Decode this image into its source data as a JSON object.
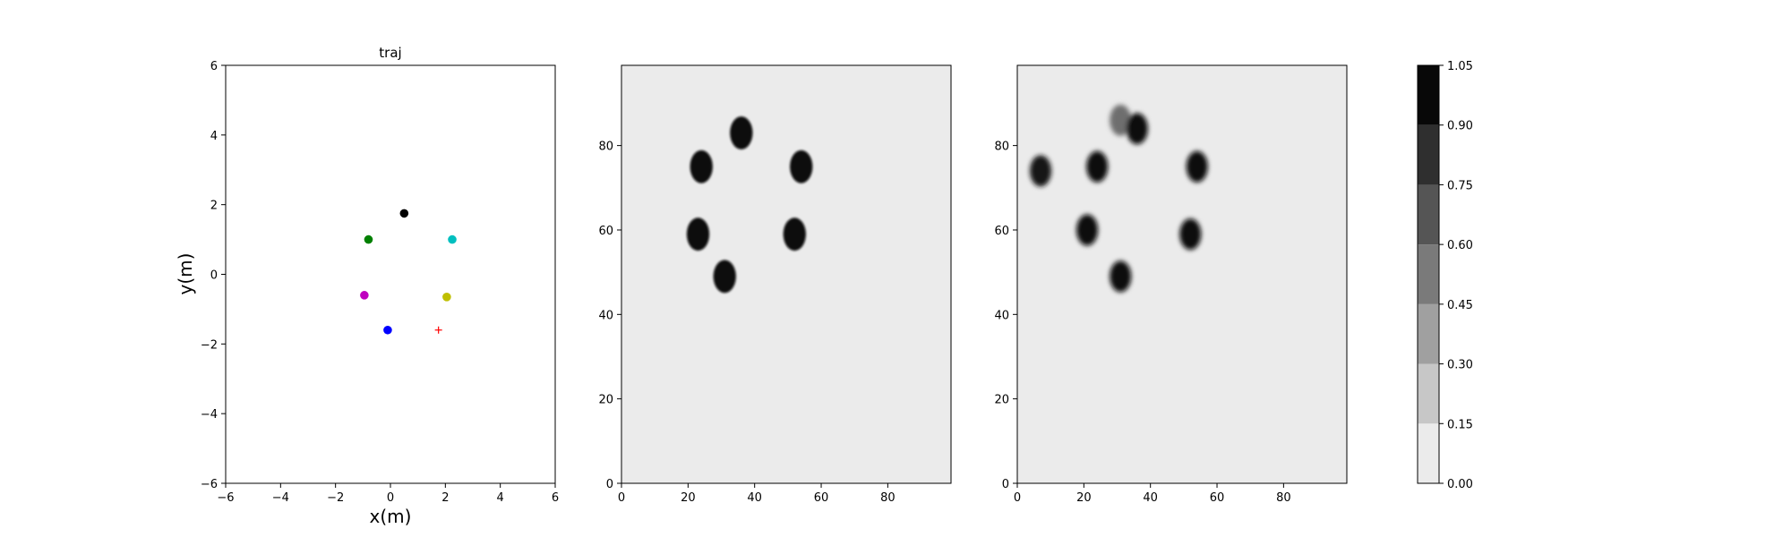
{
  "chart_data": [
    {
      "type": "scatter",
      "title": "traj",
      "xlabel": "x(m)",
      "ylabel": "y(m)",
      "xlim": [
        -6,
        6
      ],
      "ylim": [
        -6,
        6
      ],
      "xticks": [
        "−6",
        "−4",
        "−2",
        "0",
        "2",
        "4",
        "6"
      ],
      "yticks": [
        "−6",
        "−4",
        "−2",
        "0",
        "2",
        "4",
        "6"
      ],
      "grid": false,
      "points": [
        {
          "x": 0.5,
          "y": 1.75,
          "color": "#000000",
          "marker": "circle"
        },
        {
          "x": -0.8,
          "y": 1.0,
          "color": "#008000",
          "marker": "circle"
        },
        {
          "x": 2.25,
          "y": 1.0,
          "color": "#00bfbf",
          "marker": "circle"
        },
        {
          "x": -0.95,
          "y": -0.6,
          "color": "#bf00bf",
          "marker": "circle"
        },
        {
          "x": 2.05,
          "y": -0.65,
          "color": "#bfbf00",
          "marker": "circle"
        },
        {
          "x": -0.1,
          "y": -1.6,
          "color": "#0000ff",
          "marker": "circle"
        },
        {
          "x": 1.75,
          "y": -1.6,
          "color": "#ff0000",
          "marker": "plus"
        }
      ]
    },
    {
      "type": "heatmap",
      "xlim": [
        0,
        99
      ],
      "ylim": [
        0,
        99
      ],
      "xticks": [
        "0",
        "20",
        "40",
        "60",
        "80"
      ],
      "yticks": [
        "0",
        "20",
        "40",
        "60",
        "80"
      ],
      "background_value": 0.05,
      "blobs": [
        {
          "x": 23,
          "y": 59,
          "value": 1.0
        },
        {
          "x": 24,
          "y": 75,
          "value": 1.0
        },
        {
          "x": 36,
          "y": 83,
          "value": 1.0
        },
        {
          "x": 54,
          "y": 75,
          "value": 1.0
        },
        {
          "x": 52,
          "y": 59,
          "value": 1.0
        },
        {
          "x": 31,
          "y": 49,
          "value": 1.0
        }
      ]
    },
    {
      "type": "heatmap",
      "xlim": [
        0,
        99
      ],
      "ylim": [
        0,
        99
      ],
      "xticks": [
        "0",
        "20",
        "40",
        "60",
        "80"
      ],
      "yticks": [
        "0",
        "20",
        "40",
        "60",
        "80"
      ],
      "background_value": 0.05,
      "blobs": [
        {
          "x": 7,
          "y": 74,
          "value": 0.95
        },
        {
          "x": 24,
          "y": 75,
          "value": 1.0
        },
        {
          "x": 31,
          "y": 86,
          "value": 0.55
        },
        {
          "x": 36,
          "y": 84,
          "value": 1.0
        },
        {
          "x": 54,
          "y": 75,
          "value": 1.0
        },
        {
          "x": 21,
          "y": 60,
          "value": 1.0
        },
        {
          "x": 52,
          "y": 59,
          "value": 1.0
        },
        {
          "x": 31,
          "y": 49,
          "value": 1.0
        }
      ]
    }
  ],
  "colorbar": {
    "levels": [
      0.0,
      0.15,
      0.3,
      0.45,
      0.6,
      0.75,
      0.9,
      1.05
    ],
    "tick_labels": [
      "0.00",
      "0.15",
      "0.30",
      "0.45",
      "0.60",
      "0.75",
      "0.90",
      "1.05"
    ],
    "colors": [
      "#ebebeb",
      "#c7c7c7",
      "#a0a0a0",
      "#7a7a7a",
      "#555555",
      "#2f2f2f",
      "#080808"
    ]
  }
}
